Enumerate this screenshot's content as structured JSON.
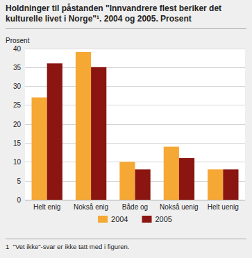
{
  "chart_data": {
    "type": "bar",
    "title": "Holdninger til påstanden \"Innvandrere flest beriker det kulturelle livet i Norge\"¹. 2004 og 2005. Prosent",
    "ylabel": "Prosent",
    "categories": [
      "Helt enig",
      "Nokså enig",
      "Både og",
      "Nokså uenig",
      "Helt uenig"
    ],
    "series": [
      {
        "name": "2004",
        "color": "#F5A833",
        "values": [
          27,
          39,
          10,
          14,
          8
        ]
      },
      {
        "name": "2005",
        "color": "#8B1510",
        "values": [
          36,
          35,
          8,
          11,
          8
        ]
      }
    ],
    "ylim": [
      0,
      40
    ],
    "yticks": [
      0,
      5,
      10,
      15,
      20,
      25,
      30,
      35,
      40
    ],
    "grid": true,
    "legend": "bottom",
    "annotations": [
      "1  \"Vet ikke\"-svar er ikke tatt med i figuren."
    ]
  }
}
